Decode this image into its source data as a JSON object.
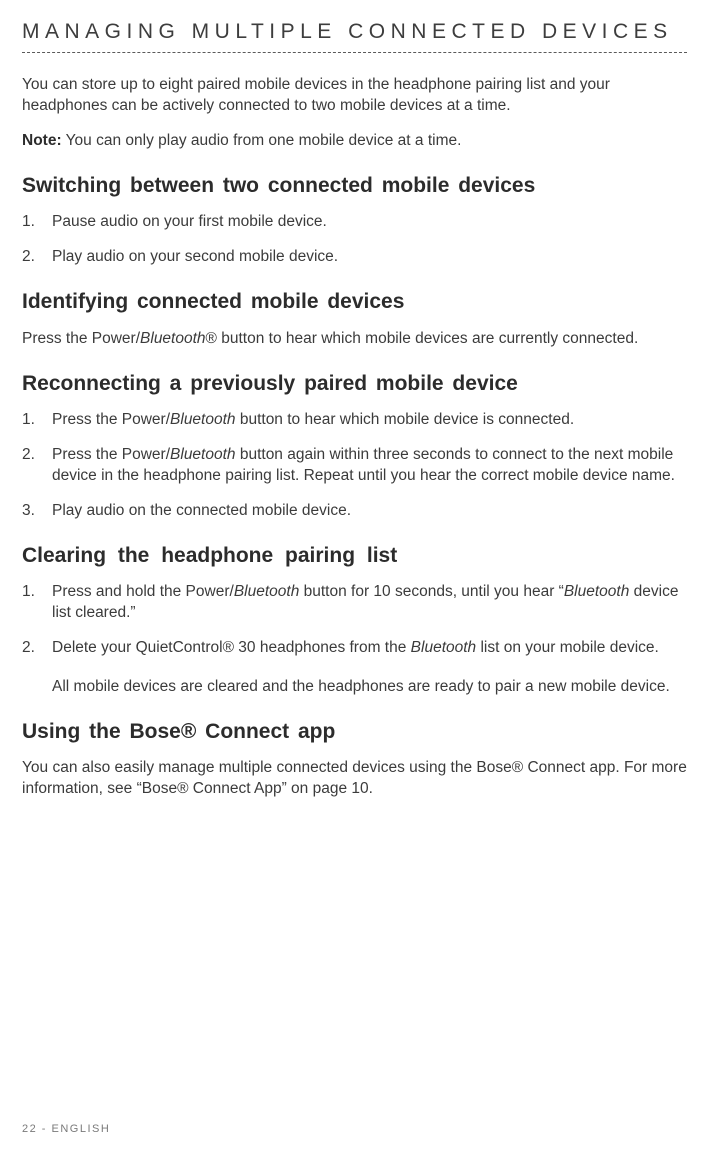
{
  "title": "MANAGING MULTIPLE CONNECTED DEVICES",
  "intro": "You can store up to eight paired mobile devices in the headphone pairing list and your headphones can be actively connected to two mobile devices at a time.",
  "note_label": "Note:",
  "note_body": "  You can only play audio from one mobile device at a time.",
  "switching": {
    "heading": "Switching  between two  connected mobile  devices",
    "items": [
      "Pause audio on your first mobile device.",
      "Play audio on your second mobile device."
    ]
  },
  "identify": {
    "heading": "Identifying connected mobile  devices",
    "body_a": "Press the Power/",
    "body_b": "Bluetooth",
    "body_c": "® button to hear which mobile devices are currently connected."
  },
  "reconnect": {
    "heading": "Reconnecting a previously  paired  mobile  device",
    "i1a": "Press the Power/",
    "i1b": "Bluetooth",
    "i1c": " button to hear which mobile device is connected.",
    "i2a": "Press the Power/",
    "i2b": "Bluetooth",
    "i2c": " button again within three seconds to connect to the next mobile device in the headphone pairing list. Repeat until you hear the correct mobile device name.",
    "i3": "Play audio on the connected mobile device."
  },
  "clearing": {
    "heading": "Clearing  the  headphone  pairing  list",
    "i1a": "Press and hold the Power/",
    "i1b": "Bluetooth",
    "i1c": " button for 10 seconds,  until you hear “",
    "i1d": "Bluetooth",
    "i1e": " device list cleared.”",
    "i2a": "Delete your QuietControl® 30 headphones from the ",
    "i2b": "Bluetooth",
    "i2c": " list on your mobile device.",
    "tail": "All mobile devices are cleared and the headphones are ready to pair a new mobile device."
  },
  "app": {
    "heading": "Using the Bose® Connect  app",
    "body": "You can also easily manage multiple connected devices using the Bose® Connect app. For more information, see “Bose® Connect App” on page 10."
  },
  "footer": "22 - ENGLISH"
}
